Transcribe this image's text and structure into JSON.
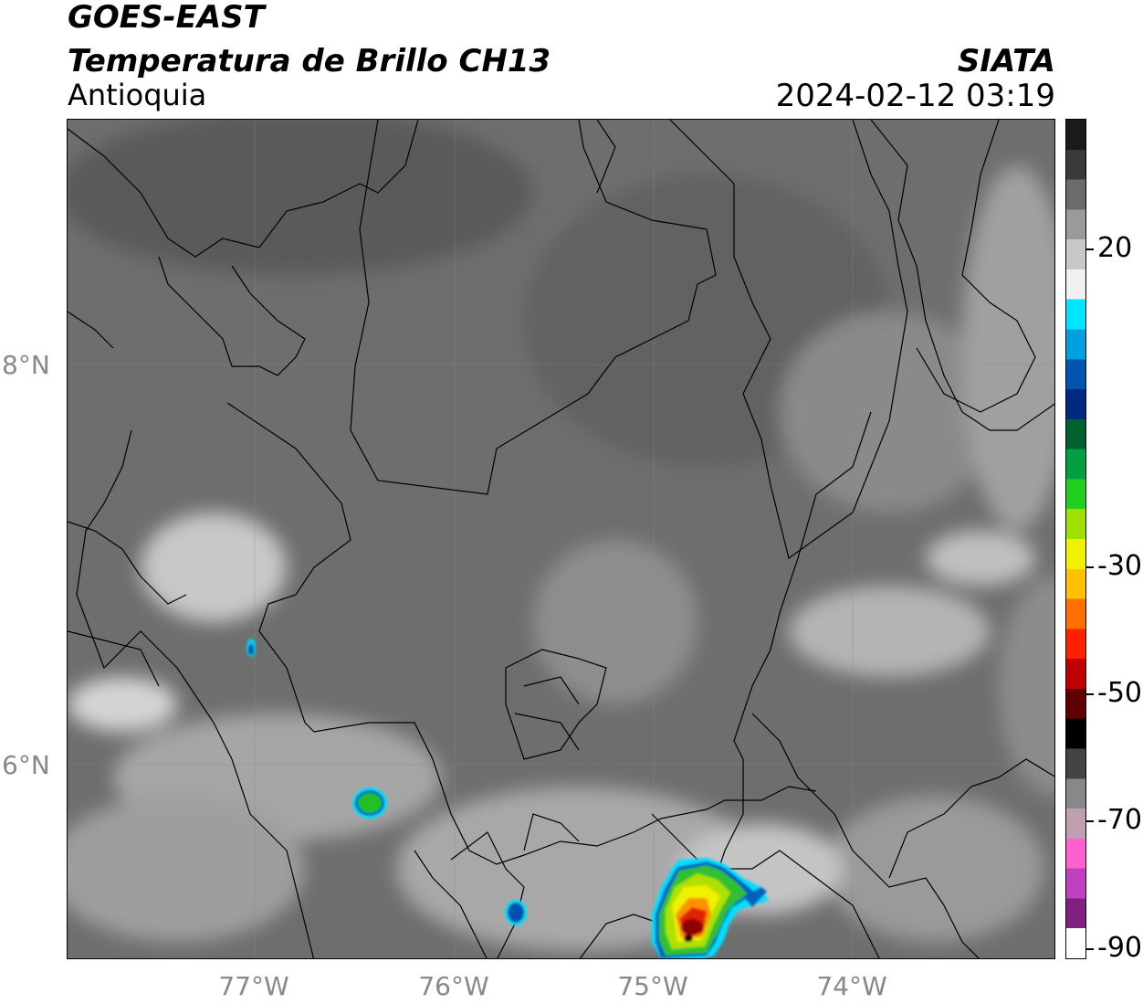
{
  "header": {
    "satellite": "GOES-EAST",
    "product": "Temperatura de Brillo CH13",
    "region": "Antioquia",
    "organization": "SIATA",
    "timestamp": "2024-02-12 03:19"
  },
  "axes": {
    "latitude_labels": [
      "8°N",
      "6°N"
    ],
    "longitude_labels": [
      "77°W",
      "76°W",
      "75°W",
      "74°W"
    ]
  },
  "colorbar": {
    "tick_labels": [
      "20",
      "-30",
      "-50",
      "-70",
      "-90"
    ],
    "segments": [
      "#1a1a1a",
      "#3a3a3a",
      "#6b6b6b",
      "#9a9a9a",
      "#c8c8c8",
      "#f0f0f0",
      "#00e5ff",
      "#00a0e0",
      "#0055b0",
      "#002a80",
      "#006030",
      "#00a040",
      "#20d020",
      "#a0e000",
      "#f0f000",
      "#ffc000",
      "#ff7000",
      "#ff2000",
      "#c00000",
      "#600000",
      "#000000",
      "#444444",
      "#888888",
      "#c0a0b0",
      "#ff60d0",
      "#c040c0",
      "#802080",
      "#ffffff"
    ]
  },
  "map": {
    "background_gray": "#6e6e6e",
    "storm_colors": [
      "#00e0ff",
      "#0060c0",
      "#20c020",
      "#a0e000",
      "#f0f000",
      "#ff8000",
      "#e00000",
      "#600000",
      "#000000"
    ]
  }
}
